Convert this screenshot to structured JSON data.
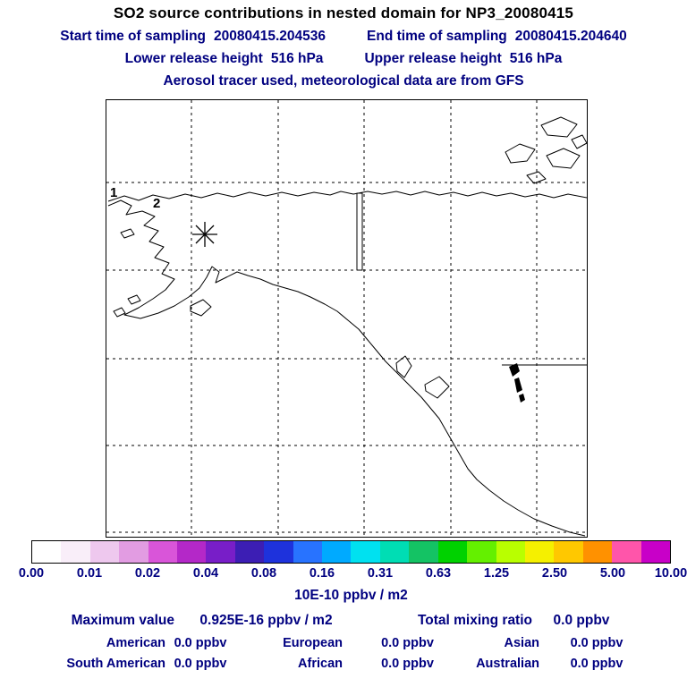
{
  "header": {
    "title": "SO2 source contributions in nested domain for NP3_20080415",
    "sampling": {
      "start_label": "Start time of sampling",
      "start_value": "20080415.204536",
      "end_label": "End time of sampling",
      "end_value": "20080415.204640"
    },
    "release": {
      "lower_label": "Lower release height",
      "lower_value": "516 hPa",
      "upper_label": "Upper release height",
      "upper_value": "516 hPa"
    },
    "tracer_line": "Aerosol tracer used, meteorological data are from GFS"
  },
  "map": {
    "markers": [
      {
        "label": "1"
      },
      {
        "label": "2"
      }
    ],
    "star_marker": "release-location-asterisk"
  },
  "colorbar": {
    "labels": [
      "0.00",
      "0.01",
      "0.02",
      "0.04",
      "0.08",
      "0.16",
      "0.31",
      "0.63",
      "1.25",
      "2.50",
      "5.00",
      "10.00"
    ],
    "colors": [
      "#ffffff",
      "#f9eef9",
      "#eec8ee",
      "#e29ce2",
      "#d955d9",
      "#b428c8",
      "#781ec8",
      "#3c1eb4",
      "#1e32dc",
      "#2873ff",
      "#00aaff",
      "#00e1f0",
      "#00ddb4",
      "#14c364",
      "#00d200",
      "#64f000",
      "#b9ff00",
      "#f5f000",
      "#ffc800",
      "#ff9100",
      "#ff55aa",
      "#c800c8"
    ],
    "unit_caption": "10E-10 ppbv / m2"
  },
  "stats": {
    "max_label": "Maximum value",
    "max_value": "0.925E-16 ppbv / m2",
    "total_label": "Total mixing ratio",
    "total_value": "0.0 ppbv",
    "regions": [
      [
        {
          "name": "American",
          "value": "0.0 ppbv"
        },
        {
          "name": "European",
          "value": "0.0 ppbv"
        },
        {
          "name": "Asian",
          "value": "0.0 ppbv"
        }
      ],
      [
        {
          "name": "South American",
          "value": "0.0 ppbv"
        },
        {
          "name": "African",
          "value": "0.0 ppbv"
        },
        {
          "name": "Australian",
          "value": "0.0 ppbv"
        }
      ]
    ]
  },
  "chart_data": {
    "type": "heatmap",
    "title": "SO2 source contributions in nested domain for NP3_20080415",
    "subtitle": "Aerosol tracer used, meteorological data are from GFS",
    "sampling_start": "20080415.204536",
    "sampling_end": "20080415.204640",
    "lower_release_height": "516 hPa",
    "upper_release_height": "516 hPa",
    "colorbar_levels": [
      0.0,
      0.01,
      0.02,
      0.04,
      0.08,
      0.16,
      0.31,
      0.63,
      1.25,
      2.5,
      5.0,
      10.0
    ],
    "colorbar_unit": "10E-10 ppbv / m2",
    "max_value": "0.925E-16 ppbv / m2",
    "total_mixing_ratio_ppbv": 0.0,
    "region_contributions_ppbv": {
      "American": 0.0,
      "European": 0.0,
      "Asian": 0.0,
      "South American": 0.0,
      "African": 0.0,
      "Australian": 0.0
    },
    "legend_position": "bottom",
    "grid": true,
    "map_region": "North Pacific / Alaska nested domain"
  }
}
